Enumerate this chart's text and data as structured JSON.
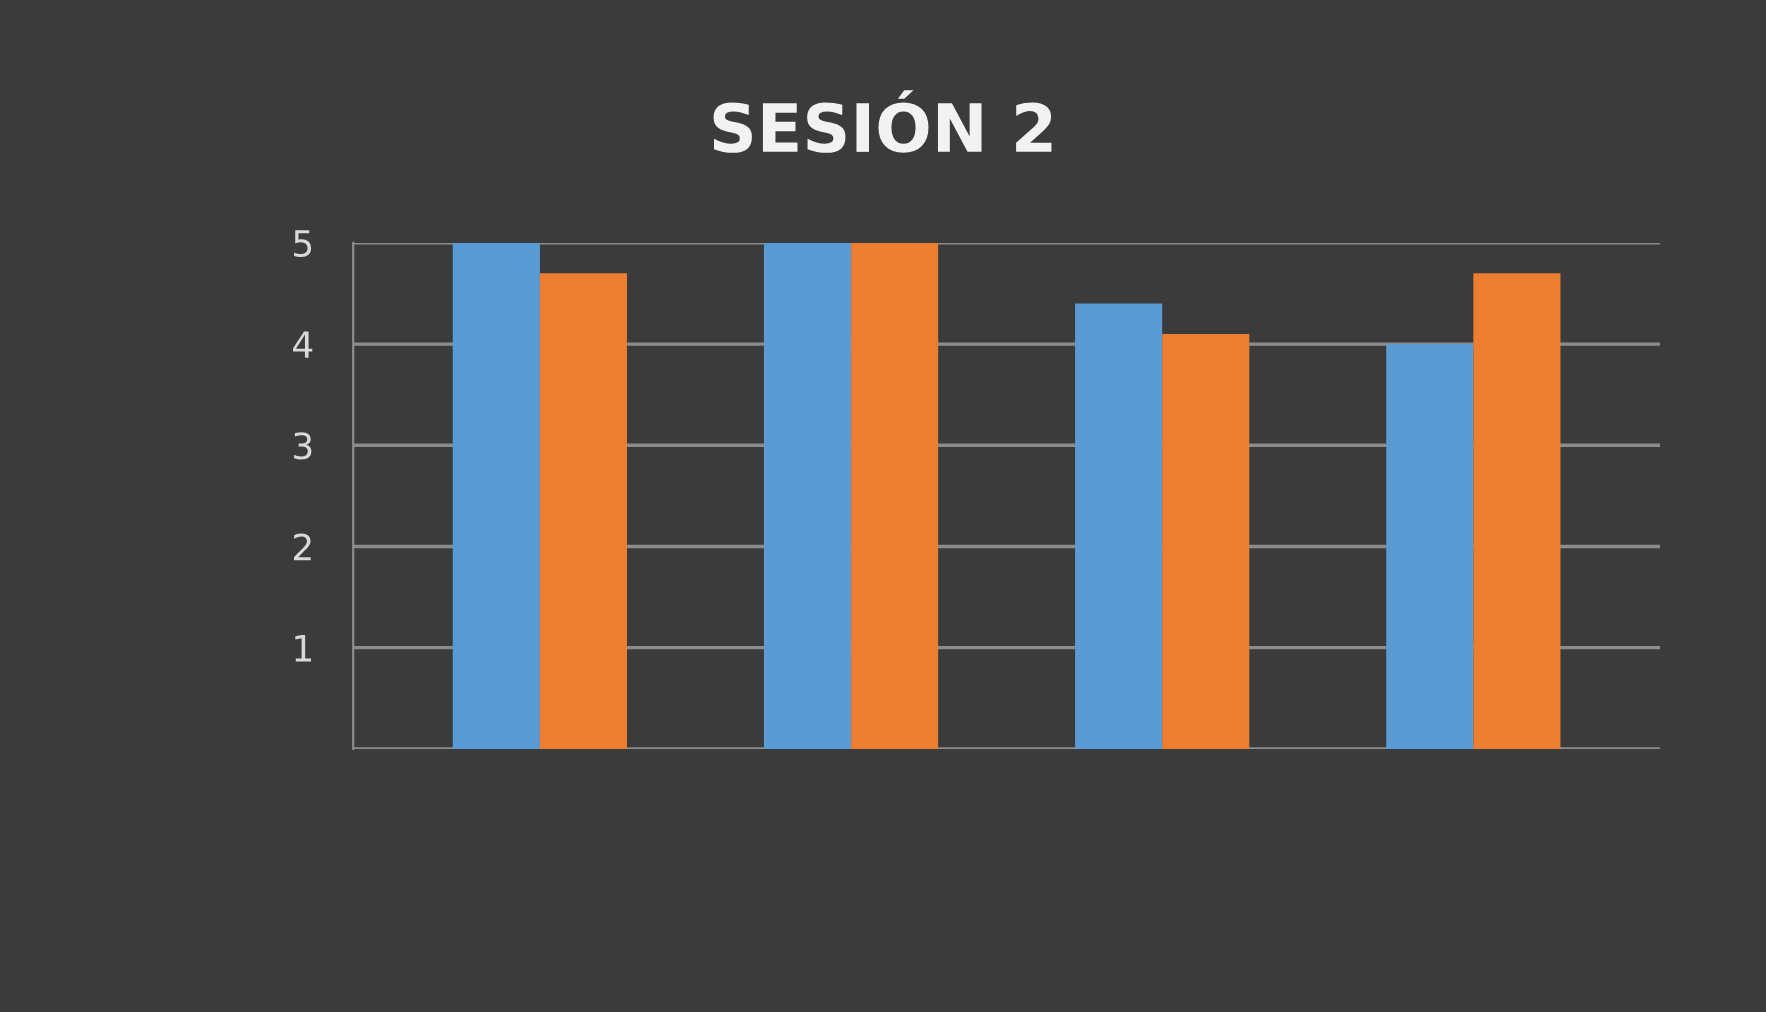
{
  "chart_data": {
    "type": "bar",
    "title": "SESIÓN 2",
    "categories": [
      null,
      null,
      null,
      null
    ],
    "series": [
      {
        "color": "#5b9bd5",
        "values": [
          5,
          5,
          4.4,
          4
        ]
      },
      {
        "color": "#ed7d31",
        "values": [
          4.7,
          5,
          4.1,
          4.7
        ]
      }
    ],
    "ylim": [
      0,
      5
    ],
    "yticks": [
      {
        "value": 0,
        "label": null
      },
      1,
      2,
      3,
      4,
      5
    ],
    "grid": "y",
    "legend": false
  }
}
